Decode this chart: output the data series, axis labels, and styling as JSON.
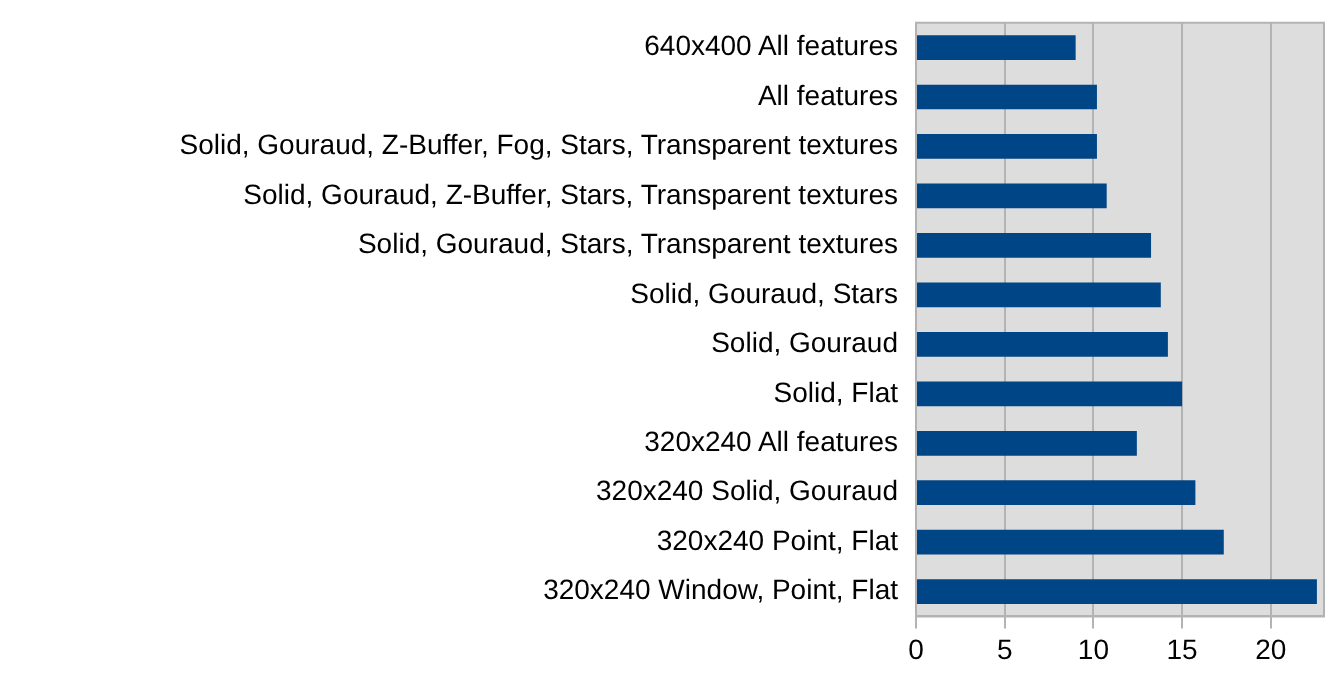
{
  "chart_data": {
    "type": "bar",
    "orientation": "horizontal",
    "categories": [
      "640x400 All features",
      "All features",
      "Solid, Gouraud, Z-Buffer, Fog, Stars, Transparent textures",
      "Solid, Gouraud, Z-Buffer, Stars, Transparent textures",
      "Solid, Gouraud, Stars, Transparent textures",
      "Solid, Gouraud, Stars",
      "Solid, Gouraud",
      "Solid, Flat",
      "320x240 All features",
      "320x240 Solid, Gouraud",
      "320x240 Point, Flat",
      "320x240 Window, Point, Flat"
    ],
    "values": [
      9.0,
      10.2,
      10.2,
      10.75,
      13.25,
      13.8,
      14.2,
      15.0,
      12.45,
      15.75,
      17.35,
      22.6
    ],
    "color": "#004586",
    "xlim": [
      0,
      23
    ],
    "xticks": [
      0,
      5,
      10,
      15,
      20
    ],
    "grid": "x",
    "legend": false
  }
}
